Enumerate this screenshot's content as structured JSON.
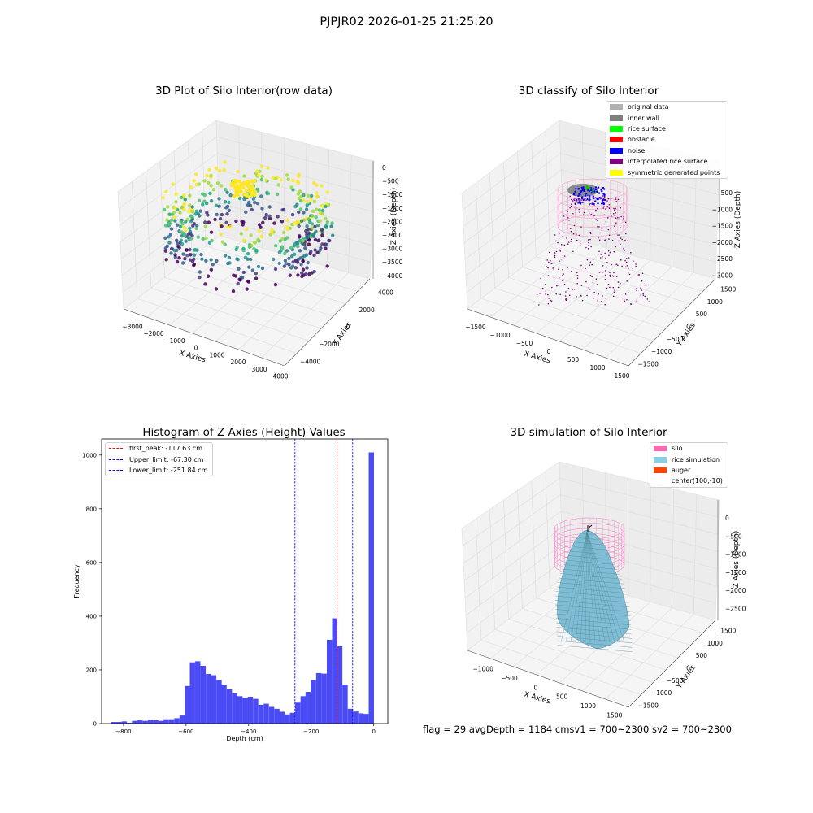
{
  "suptitle": "PJPJR02 2026-01-25 21:25:20",
  "chart_data": [
    {
      "type": "scatter",
      "projection": "3d",
      "title": "3D Plot of Silo Interior(row data)",
      "xlabel": "X Axies",
      "ylabel": "Y Axies",
      "zlabel": "Z Axies (Depth)",
      "xticks": [
        "−3000",
        "−2000",
        "−1000",
        "0",
        "1000",
        "2000",
        "3000",
        "4000"
      ],
      "yticks": [
        "−4000",
        "−2000",
        "0",
        "2000",
        "4000"
      ],
      "zticks": [
        "0",
        "−500",
        "−1000",
        "−1500",
        "−2000",
        "−2500",
        "−3000",
        "−3500",
        "−4000"
      ],
      "xlim": [
        -3500,
        4500
      ],
      "ylim": [
        -4500,
        4500
      ],
      "zlim": [
        -4000,
        0
      ],
      "colormap": "viridis",
      "description_points": "dense ring of scattered points colored by depth, yellow near top, purple at bottom"
    },
    {
      "type": "scatter",
      "projection": "3d",
      "title": "3D classify of Silo Interior",
      "xlabel": "X Axies",
      "ylabel": "Y Axies",
      "zlabel": "Z Axies (Depth)",
      "xticks": [
        "−1500",
        "−1000",
        "−500",
        "0",
        "500",
        "1000",
        "1500"
      ],
      "yticks": [
        "−1500",
        "−1000",
        "−500",
        "0",
        "500",
        "1000",
        "1500"
      ],
      "zticks": [
        "−500",
        "−1000",
        "−1500",
        "−2000",
        "−2500",
        "−3000"
      ],
      "legend": [
        {
          "label": "original data",
          "color": "#b0b0b0"
        },
        {
          "label": "inner wall",
          "color": "#808080"
        },
        {
          "label": "rice surface",
          "color": "#00ff00"
        },
        {
          "label": "obstacle",
          "color": "#ff0000"
        },
        {
          "label": "noise",
          "color": "#0000ff"
        },
        {
          "label": "interpolated rice surface",
          "color": "#800080"
        },
        {
          "label": "symmetric generated points",
          "color": "#ffff00"
        }
      ],
      "legend_position": "top-right"
    },
    {
      "type": "bar",
      "title": "Histogram of Z-Axies (Height) Values",
      "xlabel": "Depth (cm)",
      "ylabel": "Frequency",
      "xlim": [
        -870,
        45
      ],
      "ylim": [
        0,
        1060
      ],
      "xticks": [
        "−800",
        "−600",
        "−400",
        "−200",
        "0"
      ],
      "yticks": [
        "0",
        "200",
        "400",
        "600",
        "800",
        "1000"
      ],
      "bin_width": 16.8,
      "bar_color": "#4b4bf5",
      "bins": [
        {
          "x": -840,
          "y": 6
        },
        {
          "x": -823,
          "y": 6
        },
        {
          "x": -806,
          "y": 8
        },
        {
          "x": -789,
          "y": 3
        },
        {
          "x": -773,
          "y": 10
        },
        {
          "x": -756,
          "y": 12
        },
        {
          "x": -739,
          "y": 10
        },
        {
          "x": -722,
          "y": 14
        },
        {
          "x": -705,
          "y": 12
        },
        {
          "x": -688,
          "y": 10
        },
        {
          "x": -672,
          "y": 16
        },
        {
          "x": -655,
          "y": 16
        },
        {
          "x": -638,
          "y": 20
        },
        {
          "x": -621,
          "y": 30
        },
        {
          "x": -604,
          "y": 140
        },
        {
          "x": -588,
          "y": 228
        },
        {
          "x": -571,
          "y": 232
        },
        {
          "x": -554,
          "y": 215
        },
        {
          "x": -537,
          "y": 185
        },
        {
          "x": -520,
          "y": 180
        },
        {
          "x": -503,
          "y": 162
        },
        {
          "x": -487,
          "y": 145
        },
        {
          "x": -470,
          "y": 128
        },
        {
          "x": -453,
          "y": 112
        },
        {
          "x": -436,
          "y": 102
        },
        {
          "x": -419,
          "y": 95
        },
        {
          "x": -403,
          "y": 100
        },
        {
          "x": -386,
          "y": 92
        },
        {
          "x": -369,
          "y": 70
        },
        {
          "x": -352,
          "y": 74
        },
        {
          "x": -335,
          "y": 62
        },
        {
          "x": -318,
          "y": 55
        },
        {
          "x": -302,
          "y": 44
        },
        {
          "x": -285,
          "y": 34
        },
        {
          "x": -268,
          "y": 40
        },
        {
          "x": -251,
          "y": 78
        },
        {
          "x": -234,
          "y": 102
        },
        {
          "x": -218,
          "y": 118
        },
        {
          "x": -201,
          "y": 162
        },
        {
          "x": -184,
          "y": 188
        },
        {
          "x": -167,
          "y": 186
        },
        {
          "x": -150,
          "y": 312
        },
        {
          "x": -133,
          "y": 392
        },
        {
          "x": -117,
          "y": 288
        },
        {
          "x": -100,
          "y": 145
        },
        {
          "x": -83,
          "y": 55
        },
        {
          "x": -66,
          "y": 45
        },
        {
          "x": -49,
          "y": 38
        },
        {
          "x": -33,
          "y": 36
        },
        {
          "x": -16,
          "y": 1010
        }
      ],
      "vlines": [
        {
          "label": "first_peak: -117.63 cm",
          "x": -117.63,
          "color": "#ff0000"
        },
        {
          "label": "Upper_limit: -67.30 cm",
          "x": -67.3,
          "color": "#0000ff"
        },
        {
          "label": "Lower_limit: -251.84 cm",
          "x": -251.84,
          "color": "#0000ff"
        }
      ],
      "legend_position": "top-left"
    },
    {
      "type": "surface",
      "projection": "3d",
      "title": "3D simulation of Silo Interior",
      "xlabel": "X Axies",
      "ylabel": "Y Axies",
      "zlabel": "Z Axies (Depth)",
      "xticks": [
        "−1000",
        "−500",
        "0",
        "500",
        "1000",
        "1500"
      ],
      "yticks": [
        "−1500",
        "−1000",
        "−500",
        "0",
        "500",
        "1000",
        "1500"
      ],
      "zticks": [
        "0",
        "−500",
        "−1000",
        "−1500",
        "−2000",
        "−2500"
      ],
      "legend": [
        {
          "label": "silo",
          "color": "#ff69b4"
        },
        {
          "label": "rice simulation",
          "color": "#87ceeb"
        },
        {
          "label": "auger",
          "color": "#ff4500"
        },
        {
          "label": "center(100,-10)",
          "color": ""
        }
      ],
      "legend_position": "top-right",
      "footer": "flag = 29  avgDepth = 1184 cmsv1 = 700~2300  sv2 = 700~2300"
    }
  ]
}
